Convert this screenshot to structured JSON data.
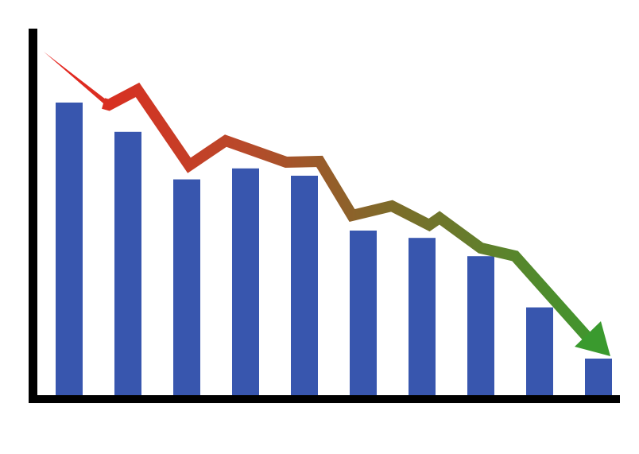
{
  "chart_data": {
    "type": "bar",
    "categories": [
      "",
      "",
      "",
      "",
      "",
      "",
      "",
      "",
      "",
      ""
    ],
    "values": [
      80,
      72,
      59,
      62,
      60,
      45,
      43,
      38,
      24,
      10
    ],
    "ylim": [
      0,
      100
    ],
    "grid": false,
    "legend": "none",
    "trend_arrow": {
      "direction": "down",
      "color_start": "#e8231e",
      "color_end": "#3a9a2e"
    },
    "colors": {
      "bar": "#3856ae",
      "axis": "#000000"
    }
  }
}
